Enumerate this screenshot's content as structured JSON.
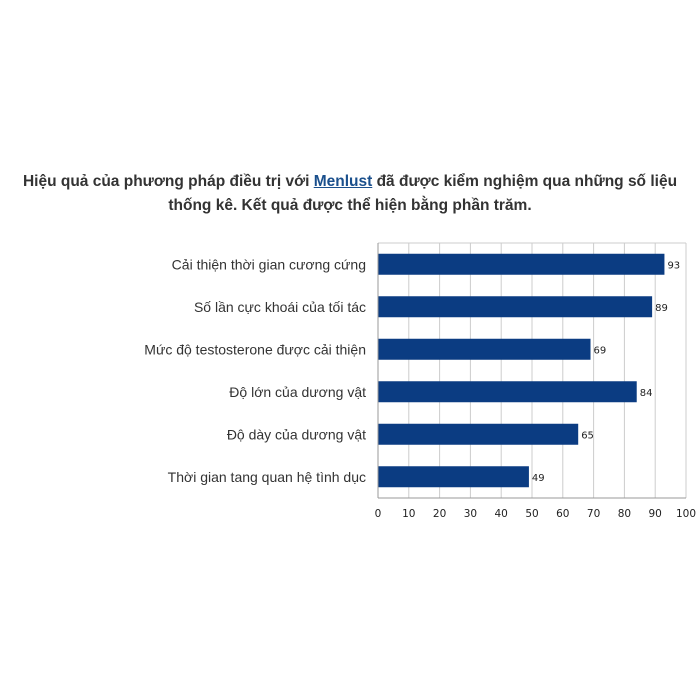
{
  "headline": {
    "before_link": "Hiệu quả của phương pháp điều trị với ",
    "link_text": "Menlust",
    "after_link": " đã được kiểm nghiệm qua những số liệu thống kê. Kết quả được thể hiện bằng phần trăm."
  },
  "chart_data": {
    "type": "bar",
    "orientation": "horizontal",
    "categories": [
      "Cải thiện thời gian cương cứng",
      "Số lần cực khoái của tối tác",
      "Mức độ testosterone được cải thiện",
      "Độ lớn của dương vật",
      "Độ dày của dương vật",
      "Thời gian tang quan hệ tình dục"
    ],
    "values": [
      93,
      89,
      69,
      84,
      65,
      49
    ],
    "xticks": [
      0,
      10,
      20,
      30,
      40,
      50,
      60,
      70,
      80,
      90,
      100
    ],
    "xlim": [
      0,
      100
    ],
    "grid": true,
    "bar_color": "#0b3c82",
    "grid_color": "#cccccc"
  }
}
